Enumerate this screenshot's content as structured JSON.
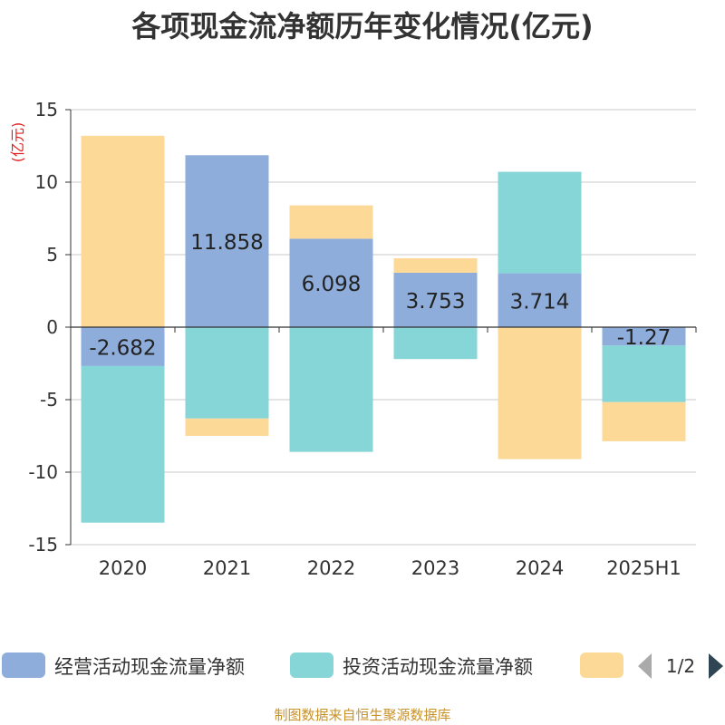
{
  "title": "各项现金流净额历年变化情况(亿元)",
  "unit_label": "(亿元)",
  "source": "制图数据来自恒生聚源数据库",
  "legend_pager": "1/2",
  "colors": {
    "operating": "#8eaddb",
    "investing": "#86d5d7",
    "financing": "#fdd998"
  },
  "chart_data": {
    "type": "bar",
    "stacked": true,
    "categories": [
      "2020",
      "2021",
      "2022",
      "2023",
      "2024",
      "2025H1"
    ],
    "ylim": [
      -15,
      15
    ],
    "yticks": [
      15,
      10,
      5,
      0,
      -5,
      -10,
      -15
    ],
    "grid": true,
    "legend_position": "bottom",
    "series": [
      {
        "name": "经营活动现金流量净额",
        "values": [
          -2.682,
          11.858,
          6.098,
          3.753,
          3.714,
          -1.27
        ],
        "labels": [
          "-2.682",
          "11.858",
          "6.098",
          "3.753",
          "3.714",
          "-1.27"
        ]
      },
      {
        "name": "投资活动现金流量净额",
        "values": [
          -10.8,
          -6.3,
          -8.6,
          -2.2,
          7.0,
          -3.9
        ]
      },
      {
        "name": "",
        "values": [
          13.2,
          -1.2,
          2.3,
          1.0,
          -9.1,
          -2.7
        ]
      }
    ]
  }
}
